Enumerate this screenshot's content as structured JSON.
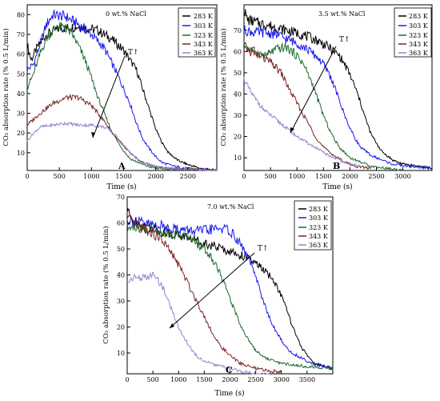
{
  "figure": {
    "panels": [
      {
        "letter": "A",
        "annotation": "0 wt.% NaCl",
        "arrow_label": "T↑",
        "xlabel": "Time (s)",
        "ylabel": "CO₂ absorption rate (% 0.5 L/min)",
        "x_ticks": [
          "0",
          "500",
          "1000",
          "1500",
          "2000",
          "2500"
        ],
        "y_ticks": [
          "10",
          "20",
          "30",
          "40",
          "50",
          "60",
          "70",
          "80"
        ]
      },
      {
        "letter": "B",
        "annotation": "3.5 wt.% NaCl",
        "arrow_label": "T↑",
        "xlabel": "Time (s)",
        "ylabel": "CO₂ absorption rate (% 0.5 L/min)",
        "x_ticks": [
          "0",
          "500",
          "1000",
          "1500",
          "2000",
          "2500",
          "3000"
        ],
        "y_ticks": [
          "10",
          "20",
          "30",
          "40",
          "50",
          "60",
          "70"
        ]
      },
      {
        "letter": "C",
        "annotation": "7.0 wt.% NaCl",
        "arrow_label": "T↑",
        "xlabel": "Time (s)",
        "ylabel": "CO₂ absorption rate (% 0.5 L/min)",
        "x_ticks": [
          "0",
          "500",
          "1000",
          "1500",
          "2000",
          "2500",
          "3000",
          "3500"
        ],
        "y_ticks": [
          "10",
          "20",
          "30",
          "40",
          "50",
          "60",
          "70"
        ]
      }
    ],
    "legend": [
      "283 K",
      "303 K",
      "323 K",
      "343 K",
      "363 K"
    ],
    "series_colors": {
      "283 K": "#000000",
      "303 K": "#1a1aee",
      "323 K": "#1c6b2c",
      "343 K": "#7a2424",
      "363 K": "#8a8ad0"
    }
  },
  "chart_data": [
    {
      "type": "line",
      "xlabel": "Time (s)",
      "ylabel": "CO₂ absorption rate (% 0.5 L/min)",
      "xlim": [
        0,
        2950
      ],
      "ylim": [
        1,
        85
      ],
      "annotation": "0 wt.% NaCl",
      "series": [
        {
          "name": "283 K",
          "x": [
            0,
            60,
            150,
            300,
            500,
            800,
            1100,
            1300,
            1500,
            1700,
            1800,
            1900,
            2000,
            2100,
            2200,
            2350,
            2500,
            2700,
            2950
          ],
          "values": [
            65,
            57,
            63,
            70,
            73,
            74,
            72,
            68,
            62,
            52,
            42,
            32,
            22,
            15,
            10,
            6,
            4,
            2,
            1
          ]
        },
        {
          "name": "303 K",
          "x": [
            0,
            100,
            200,
            300,
            400,
            600,
            800,
            1000,
            1200,
            1400,
            1600,
            1700,
            1800,
            1900,
            2000,
            2100,
            2300,
            2500,
            2950
          ],
          "values": [
            52,
            55,
            65,
            75,
            80,
            79,
            75,
            70,
            63,
            50,
            35,
            25,
            17,
            12,
            8,
            5,
            3,
            2,
            1
          ]
        },
        {
          "name": "323 K",
          "x": [
            0,
            100,
            200,
            300,
            400,
            500,
            600,
            700,
            800,
            900,
            1000,
            1100,
            1200,
            1300,
            1400,
            1500,
            1600,
            1800,
            2000,
            2950
          ],
          "values": [
            43,
            50,
            60,
            68,
            72,
            74,
            73,
            70,
            64,
            57,
            48,
            38,
            30,
            22,
            16,
            11,
            7,
            4,
            2,
            1
          ]
        },
        {
          "name": "343 K",
          "x": [
            0,
            100,
            200,
            400,
            600,
            800,
            1000,
            1100,
            1200,
            1300,
            1400,
            1500,
            1600,
            1700,
            1800,
            2000,
            2200,
            2950
          ],
          "values": [
            24,
            27,
            30,
            35,
            38,
            38,
            34,
            30,
            26,
            21,
            17,
            13,
            10,
            7,
            5,
            3,
            2,
            1
          ]
        },
        {
          "name": "363 K",
          "x": [
            0,
            100,
            200,
            400,
            600,
            800,
            1000,
            1200,
            1300,
            1400,
            1500,
            1600,
            1700,
            1800,
            2000,
            2200,
            2950
          ],
          "values": [
            16,
            20,
            23,
            24,
            25,
            24,
            24,
            23,
            21,
            18,
            14,
            10,
            7,
            5,
            3,
            2,
            1
          ]
        }
      ]
    },
    {
      "type": "line",
      "xlabel": "Time (s)",
      "ylabel": "CO₂ absorption rate (% 0.5 L/min)",
      "xlim": [
        0,
        3550
      ],
      "ylim": [
        4,
        82
      ],
      "annotation": "3.5 wt.% NaCl",
      "series": [
        {
          "name": "283 K",
          "x": [
            0,
            60,
            200,
            500,
            800,
            1100,
            1400,
            1600,
            1800,
            1900,
            2000,
            2100,
            2200,
            2300,
            2400,
            2600,
            2800,
            3000,
            3300,
            3550
          ],
          "values": [
            80,
            75,
            74,
            72,
            70,
            68,
            65,
            62,
            58,
            54,
            49,
            43,
            36,
            28,
            21,
            13,
            9,
            7,
            6,
            5
          ]
        },
        {
          "name": "303 K",
          "x": [
            0,
            200,
            400,
            600,
            800,
            1000,
            1200,
            1400,
            1500,
            1600,
            1700,
            1800,
            1900,
            2000,
            2100,
            2200,
            2400,
            2600,
            2800,
            3100,
            3550
          ],
          "values": [
            70,
            69,
            69,
            68,
            66,
            64,
            61,
            57,
            54,
            50,
            44,
            37,
            30,
            24,
            19,
            15,
            11,
            9,
            7,
            6,
            5
          ]
        },
        {
          "name": "323 K",
          "x": [
            0,
            200,
            400,
            600,
            800,
            1000,
            1100,
            1200,
            1300,
            1400,
            1500,
            1600,
            1700,
            1800,
            2000,
            2200,
            2400,
            2700,
            3000
          ],
          "values": [
            63,
            60,
            58,
            61,
            62,
            58,
            55,
            50,
            44,
            37,
            30,
            24,
            19,
            15,
            10,
            8,
            6,
            5,
            4
          ]
        },
        {
          "name": "343 K",
          "x": [
            0,
            100,
            300,
            500,
            700,
            800,
            900,
            1000,
            1100,
            1200,
            1300,
            1400,
            1500,
            1600,
            1700,
            1900,
            2100,
            2400
          ],
          "values": [
            63,
            60,
            58,
            55,
            50,
            45,
            40,
            36,
            31,
            27,
            22,
            18,
            15,
            13,
            11,
            8,
            6,
            5
          ]
        },
        {
          "name": "363 K",
          "x": [
            0,
            100,
            200,
            400,
            600,
            800,
            1000,
            1200,
            1400,
            1600,
            1800,
            2000,
            2200
          ],
          "values": [
            47,
            42,
            38,
            32,
            28,
            24,
            20,
            17,
            14,
            11,
            9,
            7,
            6
          ]
        }
      ]
    },
    {
      "type": "line",
      "xlabel": "Time (s)",
      "ylabel": "CO₂ absorption rate (% 0.5 L/min)",
      "xlim": [
        0,
        4000
      ],
      "ylim": [
        2,
        70
      ],
      "annotation": "7.0 wt.% NaCl",
      "series": [
        {
          "name": "283 K",
          "x": [
            0,
            50,
            200,
            500,
            800,
            1100,
            1400,
            1700,
            2000,
            2300,
            2600,
            2800,
            2900,
            3000,
            3100,
            3200,
            3300,
            3400,
            3500,
            3650,
            3800,
            4000
          ],
          "values": [
            66,
            62,
            60,
            58,
            56,
            55,
            53,
            51,
            49,
            47,
            43,
            39,
            36,
            32,
            27,
            21,
            16,
            12,
            9,
            6,
            5,
            4
          ]
        },
        {
          "name": "303 K",
          "x": [
            0,
            300,
            600,
            900,
            1200,
            1500,
            1800,
            2000,
            2200,
            2400,
            2500,
            2600,
            2700,
            2800,
            2900,
            3000,
            3100,
            3200,
            3400,
            3600,
            4000
          ],
          "values": [
            61,
            60,
            59,
            58,
            57,
            57,
            58,
            57,
            52,
            45,
            39,
            33,
            27,
            22,
            18,
            15,
            12,
            10,
            8,
            6,
            4
          ]
        },
        {
          "name": "323 K",
          "x": [
            0,
            200,
            500,
            800,
            1100,
            1300,
            1500,
            1700,
            1800,
            1900,
            2000,
            2100,
            2200,
            2300,
            2400,
            2500,
            2700,
            3000,
            3400,
            4000
          ],
          "values": [
            58,
            58,
            57,
            56,
            55,
            53,
            50,
            45,
            41,
            36,
            31,
            26,
            21,
            17,
            14,
            11,
            8,
            6,
            5,
            4
          ]
        },
        {
          "name": "343 K",
          "x": [
            0,
            100,
            300,
            500,
            700,
            800,
            900,
            1000,
            1100,
            1200,
            1300,
            1400,
            1500,
            1600,
            1700,
            1800,
            2000,
            2200,
            2500,
            2800,
            3000
          ],
          "values": [
            62,
            60,
            58,
            56,
            53,
            50,
            47,
            44,
            40,
            36,
            32,
            28,
            24,
            20,
            16,
            13,
            9,
            6,
            4,
            3,
            3
          ]
        },
        {
          "name": "363 K",
          "x": [
            0,
            100,
            200,
            400,
            500,
            600,
            700,
            800,
            900,
            1000,
            1100,
            1200,
            1300,
            1400,
            1600,
            1800,
            2000,
            2200,
            2500,
            2800
          ],
          "values": [
            37,
            39,
            39,
            39,
            40,
            38,
            35,
            30,
            25,
            20,
            16,
            13,
            10,
            8,
            6,
            5,
            4,
            3,
            2,
            2
          ]
        }
      ]
    }
  ]
}
